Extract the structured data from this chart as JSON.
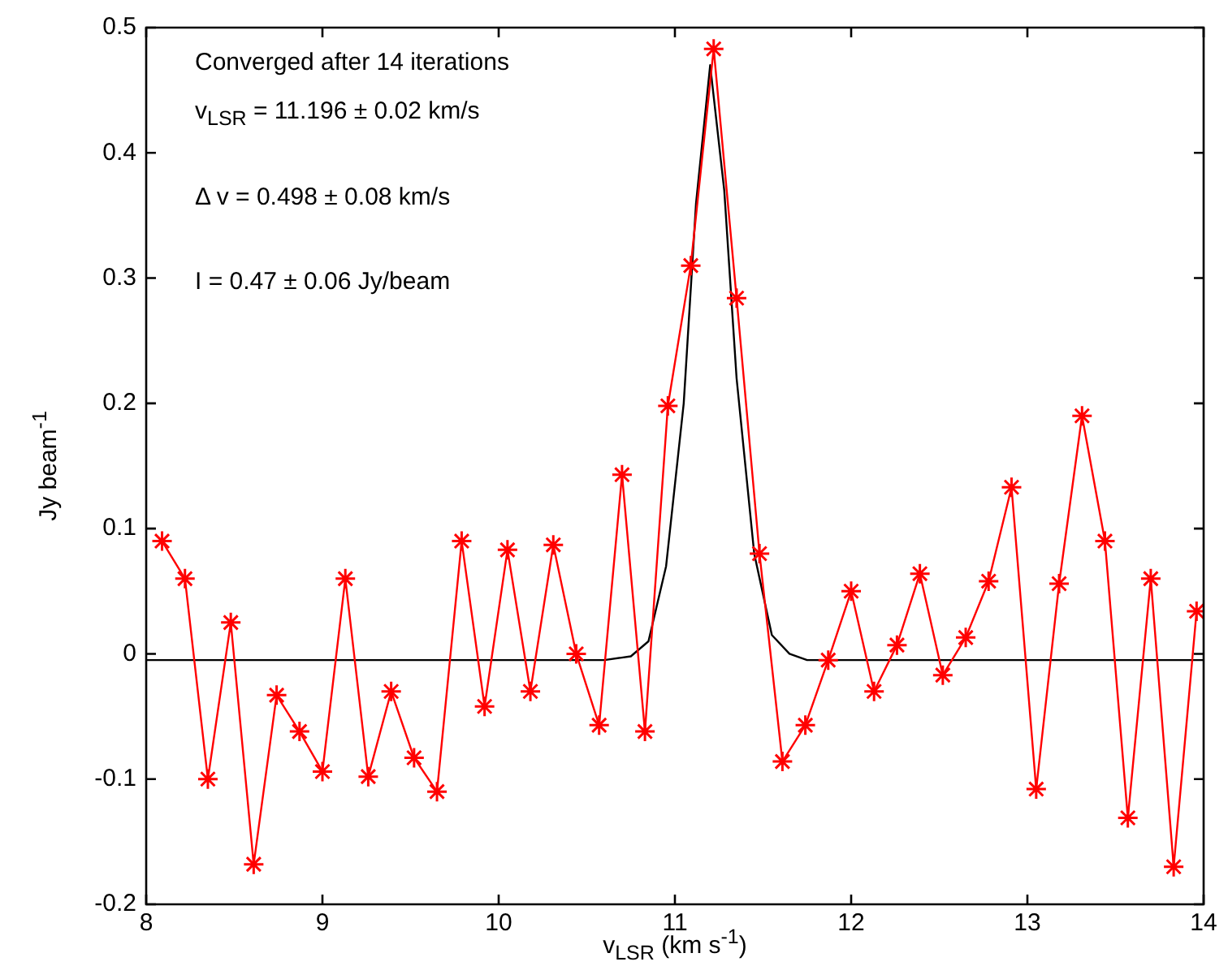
{
  "chart_data": {
    "type": "line",
    "xlabel": "v$_{LSR}$ (km s$^{-1}$)",
    "ylabel": "Jy beam$^{-1}$",
    "annotations": [
      "Converged after 14 iterations",
      "v$_{LSR}$ = 11.196 ± 0.02 km/s",
      "Δ v = 0.498 ± 0.08 km/s",
      "I = 0.47 ± 0.06 Jy/beam"
    ],
    "xlim": [
      8,
      14
    ],
    "xticks": [
      8,
      9,
      10,
      11,
      12,
      13,
      14
    ],
    "ylim": [
      -0.2,
      0.5
    ],
    "yticks": [
      -0.2,
      -0.1,
      0,
      0.1,
      0.2,
      0.3,
      0.4,
      0.5
    ],
    "grid": false,
    "legend": false,
    "series": [
      {
        "color": "#ff0000",
        "marker": "cross",
        "line_style": "solid",
        "x": [
          8.09,
          8.22,
          8.35,
          8.48,
          8.61,
          8.74,
          8.87,
          9.0,
          9.13,
          9.26,
          9.39,
          9.52,
          9.65,
          9.79,
          9.92,
          10.05,
          10.18,
          10.31,
          10.44,
          10.57,
          10.7,
          10.83,
          10.96,
          11.09,
          11.22,
          11.35,
          11.48,
          11.61,
          11.74,
          11.87,
          12.0,
          12.13,
          12.26,
          12.39,
          12.52,
          12.65,
          12.78,
          12.91,
          13.05,
          13.18,
          13.31,
          13.44,
          13.57,
          13.7,
          13.83,
          13.96
        ],
        "values": [
          0.09,
          0.06,
          -0.1,
          0.025,
          -0.168,
          -0.033,
          -0.062,
          -0.094,
          0.06,
          -0.098,
          -0.03,
          -0.083,
          -0.11,
          0.09,
          -0.042,
          0.083,
          -0.03,
          0.087,
          0.0,
          -0.057,
          0.143,
          -0.062,
          0.198,
          0.31,
          0.483,
          0.284,
          0.08,
          -0.086,
          -0.057,
          -0.005,
          0.05,
          -0.03,
          0.007,
          0.064,
          -0.017,
          0.013,
          0.058,
          0.133,
          -0.108,
          0.056,
          0.19,
          0.09,
          -0.131,
          0.06,
          -0.17,
          0.034
        ]
      },
      {
        "color": "#000000",
        "marker": "none",
        "line_style": "solid",
        "x": [
          8,
          10.6,
          10.75,
          10.85,
          10.95,
          11.05,
          11.12,
          11.2,
          11.28,
          11.35,
          11.45,
          11.55,
          11.65,
          11.75,
          14
        ],
        "values": [
          -0.005,
          -0.005,
          -0.002,
          0.01,
          0.07,
          0.2,
          0.36,
          0.47,
          0.37,
          0.22,
          0.08,
          0.015,
          0.0,
          -0.005,
          -0.005
        ]
      }
    ]
  }
}
